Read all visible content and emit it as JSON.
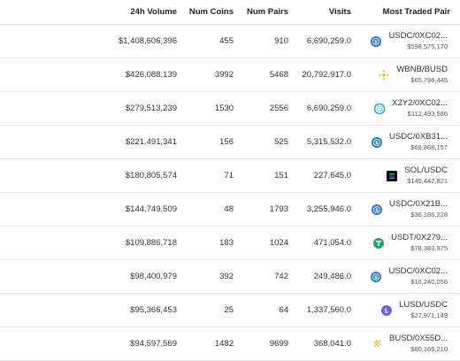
{
  "columns": {
    "volume": "24h Volume",
    "coins": "Num Coins",
    "pairs": "Num Pairs",
    "visits": "Visits",
    "pair": "Most Traded Pair"
  },
  "rows": [
    {
      "volume": "$1,408,606,396",
      "coins": "455",
      "pairs": "910",
      "visits": "6,690,259.0",
      "pair": "USDC/0XC02...",
      "pair_volume": "$598,575,170",
      "icon": "usdc-icon",
      "color": "#2775ca"
    },
    {
      "volume": "$426,088,139",
      "coins": "3992",
      "pairs": "5468",
      "visits": "20,792,917.0",
      "pair": "WBNB/BUSD",
      "pair_volume": "$65,796,445",
      "icon": "bnb-icon",
      "color": "#f3ba2f"
    },
    {
      "volume": "$279,513,239",
      "coins": "1530",
      "pairs": "2556",
      "visits": "6,690,259.0",
      "pair": "X2Y2/0XC02...",
      "pair_volume": "$112,493,586",
      "icon": "x2y2-icon",
      "color": "#22a7f0"
    },
    {
      "volume": "$221,491,341",
      "coins": "156",
      "pairs": "525",
      "visits": "5,315,532.0",
      "pair": "USDC/0XB31...",
      "pair_volume": "$68,868,157",
      "icon": "usdc-icon",
      "color": "#2775ca"
    },
    {
      "volume": "$180,805,574",
      "coins": "71",
      "pairs": "151",
      "visits": "227,645.0",
      "pair": "SOL/USDC",
      "pair_volume": "$145,442,821",
      "icon": "sol-icon",
      "color": "#000000"
    },
    {
      "volume": "$144,749,509",
      "coins": "48",
      "pairs": "1793",
      "visits": "3,255,946.0",
      "pair": "USDC/0X21B...",
      "pair_volume": "$36,186,228",
      "icon": "usdc-icon",
      "color": "#2775ca"
    },
    {
      "volume": "$109,886,718",
      "coins": "183",
      "pairs": "1024",
      "visits": "471,054.0",
      "pair": "USDT/0X279...",
      "pair_volume": "$78,383,975",
      "icon": "usdt-icon",
      "color": "#26a17b"
    },
    {
      "volume": "$98,400,979",
      "coins": "392",
      "pairs": "742",
      "visits": "249,486.0",
      "pair": "USDC/0XC02...",
      "pair_volume": "$16,240,056",
      "icon": "usdc-icon",
      "color": "#2775ca"
    },
    {
      "volume": "$95,366,453",
      "coins": "25",
      "pairs": "64",
      "visits": "1,337,560.0",
      "pair": "LUSD/USDC",
      "pair_volume": "$27,971,149",
      "icon": "lusd-icon",
      "color": "#745ddf"
    },
    {
      "volume": "$94,597,569",
      "coins": "1482",
      "pairs": "9699",
      "visits": "368,041.0",
      "pair": "BUSD/0X55D...",
      "pair_volume": "$80,169,210",
      "icon": "busd-icon",
      "color": "#f0b90b"
    }
  ]
}
